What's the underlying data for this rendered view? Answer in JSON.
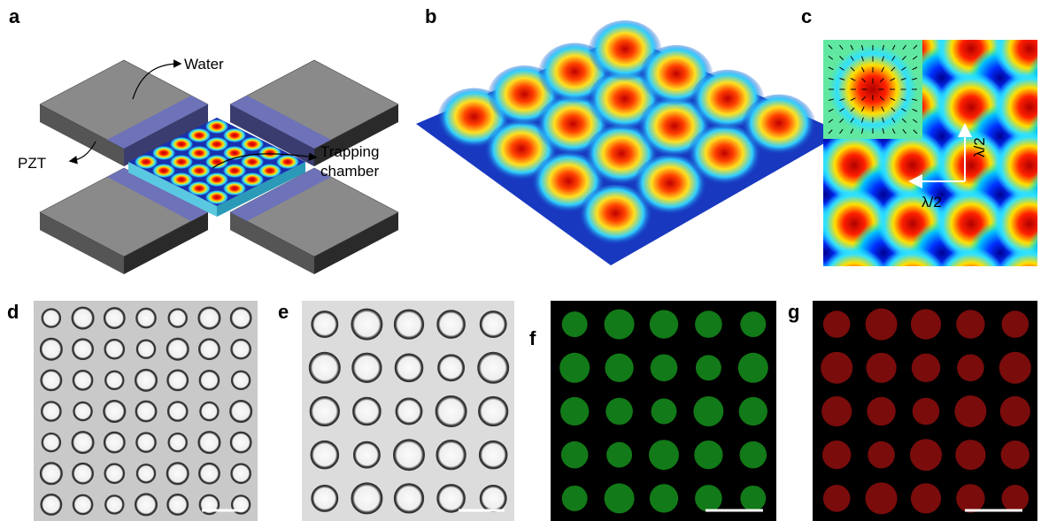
{
  "panels": [
    {
      "label": "a",
      "texts": [
        "Water",
        "PZT",
        "Trapping",
        "chamber"
      ]
    },
    {
      "label": "b"
    },
    {
      "label": "c",
      "texts": [
        "λ/2",
        "λ/2"
      ]
    },
    {
      "label": "d"
    },
    {
      "label": "e"
    },
    {
      "label": "f"
    },
    {
      "label": "g"
    }
  ]
}
